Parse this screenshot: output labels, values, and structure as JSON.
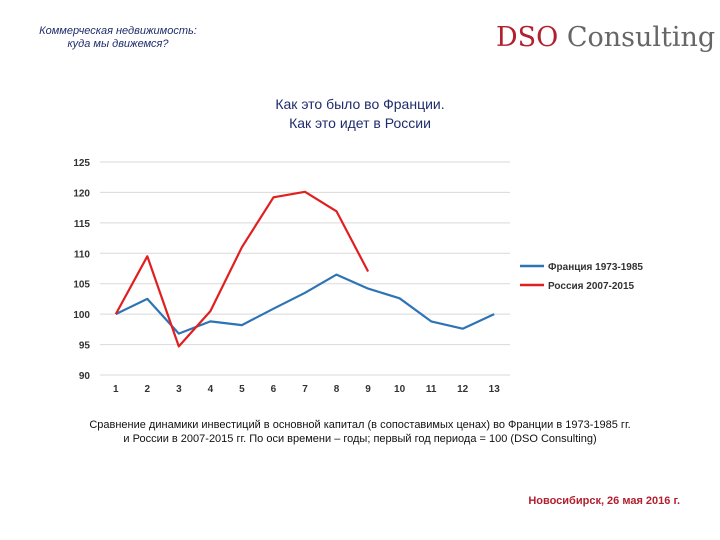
{
  "header": {
    "line1": "Коммерческая недвижимость:",
    "line2": "куда мы движемся?"
  },
  "logo": {
    "part1": "DSO",
    "part2": "Consulting"
  },
  "title": {
    "line1": "Как это было во Франции.",
    "line2": "Как это идет в России"
  },
  "chart_data": {
    "type": "line",
    "x": [
      1,
      2,
      3,
      4,
      5,
      6,
      7,
      8,
      9,
      10,
      11,
      12,
      13
    ],
    "ylim": [
      90,
      125
    ],
    "yticks": [
      90,
      95,
      100,
      105,
      110,
      115,
      120,
      125
    ],
    "grid": true,
    "legend_position": "right",
    "series": [
      {
        "name": "Франция 1973-1985",
        "color": "#2e74b5",
        "values": [
          100,
          102.5,
          96.8,
          98.8,
          98.2,
          100.9,
          103.5,
          106.5,
          104.2,
          102.6,
          98.8,
          97.6,
          100
        ]
      },
      {
        "name": "Россия 2007-2015",
        "color": "#e02020",
        "values": [
          100,
          109.5,
          94.7,
          100.5,
          111,
          119.2,
          120.1,
          116.9,
          107,
          null,
          null,
          null,
          null
        ]
      }
    ]
  },
  "caption": {
    "line1": "Сравнение динамики инвестиций в основной капитал (в сопоставимых ценах) во Франции в 1973-1985 гг.",
    "line2": "и России в 2007-2015 гг.  По оси времени – годы; первый год периода = 100 (DSO Consulting)"
  },
  "footer": "Новосибирск, 26 мая 2016 г."
}
